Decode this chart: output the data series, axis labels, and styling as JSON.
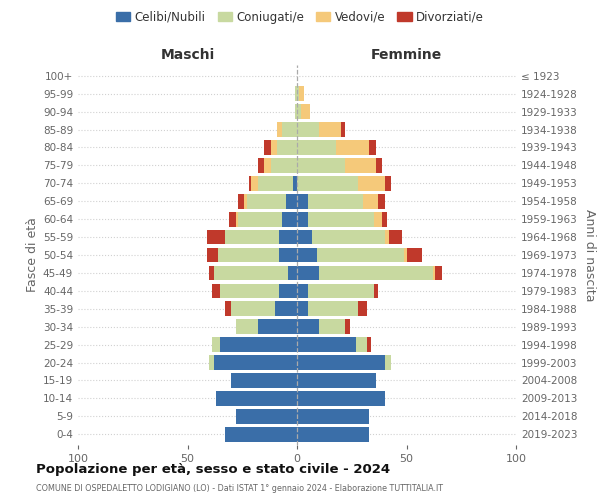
{
  "age_groups": [
    "0-4",
    "5-9",
    "10-14",
    "15-19",
    "20-24",
    "25-29",
    "30-34",
    "35-39",
    "40-44",
    "45-49",
    "50-54",
    "55-59",
    "60-64",
    "65-69",
    "70-74",
    "75-79",
    "80-84",
    "85-89",
    "90-94",
    "95-99",
    "100+"
  ],
  "birth_years": [
    "2019-2023",
    "2014-2018",
    "2009-2013",
    "2004-2008",
    "1999-2003",
    "1994-1998",
    "1989-1993",
    "1984-1988",
    "1979-1983",
    "1974-1978",
    "1969-1973",
    "1964-1968",
    "1959-1963",
    "1954-1958",
    "1949-1953",
    "1944-1948",
    "1939-1943",
    "1934-1938",
    "1929-1933",
    "1924-1928",
    "≤ 1923"
  ],
  "colors": {
    "celibi": "#3a6ea8",
    "coniugati": "#c8d9a0",
    "vedovi": "#f5c97a",
    "divorziati": "#c0392b"
  },
  "m_cel": [
    33,
    28,
    37,
    30,
    38,
    35,
    18,
    10,
    8,
    4,
    8,
    8,
    7,
    5,
    2,
    0,
    0,
    0,
    0,
    0,
    0
  ],
  "m_con": [
    0,
    0,
    0,
    0,
    2,
    4,
    10,
    20,
    27,
    34,
    28,
    25,
    20,
    18,
    16,
    12,
    9,
    7,
    1,
    1,
    0
  ],
  "m_ved": [
    0,
    0,
    0,
    0,
    0,
    0,
    0,
    0,
    0,
    0,
    0,
    0,
    1,
    1,
    3,
    3,
    3,
    2,
    0,
    0,
    0
  ],
  "m_div": [
    0,
    0,
    0,
    0,
    0,
    0,
    0,
    3,
    4,
    2,
    5,
    8,
    3,
    3,
    1,
    3,
    3,
    0,
    0,
    0,
    0
  ],
  "f_cel": [
    33,
    33,
    40,
    36,
    40,
    27,
    10,
    5,
    5,
    10,
    9,
    7,
    5,
    5,
    0,
    0,
    0,
    0,
    0,
    0,
    0
  ],
  "f_con": [
    0,
    0,
    0,
    0,
    3,
    5,
    12,
    23,
    30,
    52,
    40,
    33,
    30,
    25,
    28,
    22,
    18,
    10,
    2,
    1,
    0
  ],
  "f_ved": [
    0,
    0,
    0,
    0,
    0,
    0,
    0,
    0,
    0,
    1,
    1,
    2,
    4,
    7,
    12,
    14,
    15,
    10,
    4,
    2,
    0
  ],
  "f_div": [
    0,
    0,
    0,
    0,
    0,
    2,
    2,
    4,
    2,
    3,
    7,
    6,
    2,
    3,
    3,
    3,
    3,
    2,
    0,
    0,
    0
  ],
  "title": "Popolazione per età, sesso e stato civile - 2024",
  "subtitle": "COMUNE DI OSPEDALETTO LODIGIANO (LO) - Dati ISTAT 1° gennaio 2024 - Elaborazione TUTTITALIA.IT",
  "label_maschi": "Maschi",
  "label_femmine": "Femmine",
  "ylabel_left": "Fasce di età",
  "ylabel_right": "Anni di nascita",
  "legend_labels": [
    "Celibi/Nubili",
    "Coniugati/e",
    "Vedovi/e",
    "Divorziati/e"
  ],
  "xlim": 100,
  "bg_color": "#ffffff",
  "grid_color": "#cccccc",
  "text_color": "#666666",
  "title_color": "#111111"
}
